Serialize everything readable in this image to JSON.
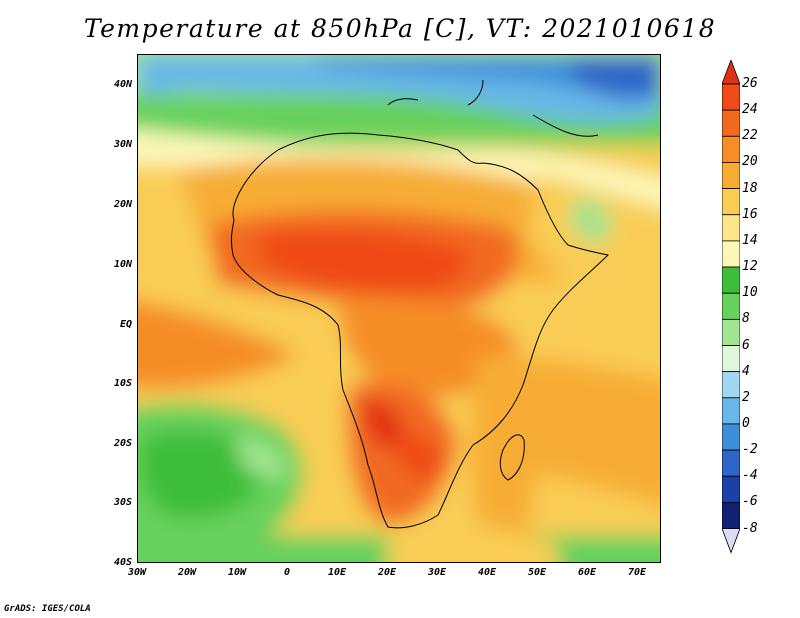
{
  "title": "Temperature at 850hPa [C], VT: 2021010618",
  "credit": "GrADS: IGES/COLA",
  "map": {
    "lat_labels": [
      "40N",
      "30N",
      "20N",
      "10N",
      "EQ",
      "10S",
      "20S",
      "30S",
      "40S"
    ],
    "lon_labels": [
      "30W",
      "20W",
      "10W",
      "0",
      "10E",
      "20E",
      "30E",
      "40E",
      "50E",
      "60E",
      "70E"
    ],
    "extent": {
      "lon": [
        -30,
        75
      ],
      "lat": [
        -40,
        45
      ]
    }
  },
  "colorbar": {
    "labels": [
      "26",
      "24",
      "22",
      "20",
      "18",
      "16",
      "14",
      "12",
      "10",
      "8",
      "6",
      "4",
      "2",
      "0",
      "-2",
      "-4",
      "-6",
      "-8"
    ],
    "colors": [
      "#e23216",
      "#ef4a17",
      "#f26a20",
      "#f58d28",
      "#f7ad34",
      "#f9cd55",
      "#fbe68c",
      "#fcf7b7",
      "#3dbd3a",
      "#66d15c",
      "#a2e48f",
      "#def6da",
      "#a0d8f2",
      "#68b7e8",
      "#3e8fd9",
      "#2d66c8",
      "#1d40a8",
      "#112272",
      "#dcdcf5"
    ]
  }
}
